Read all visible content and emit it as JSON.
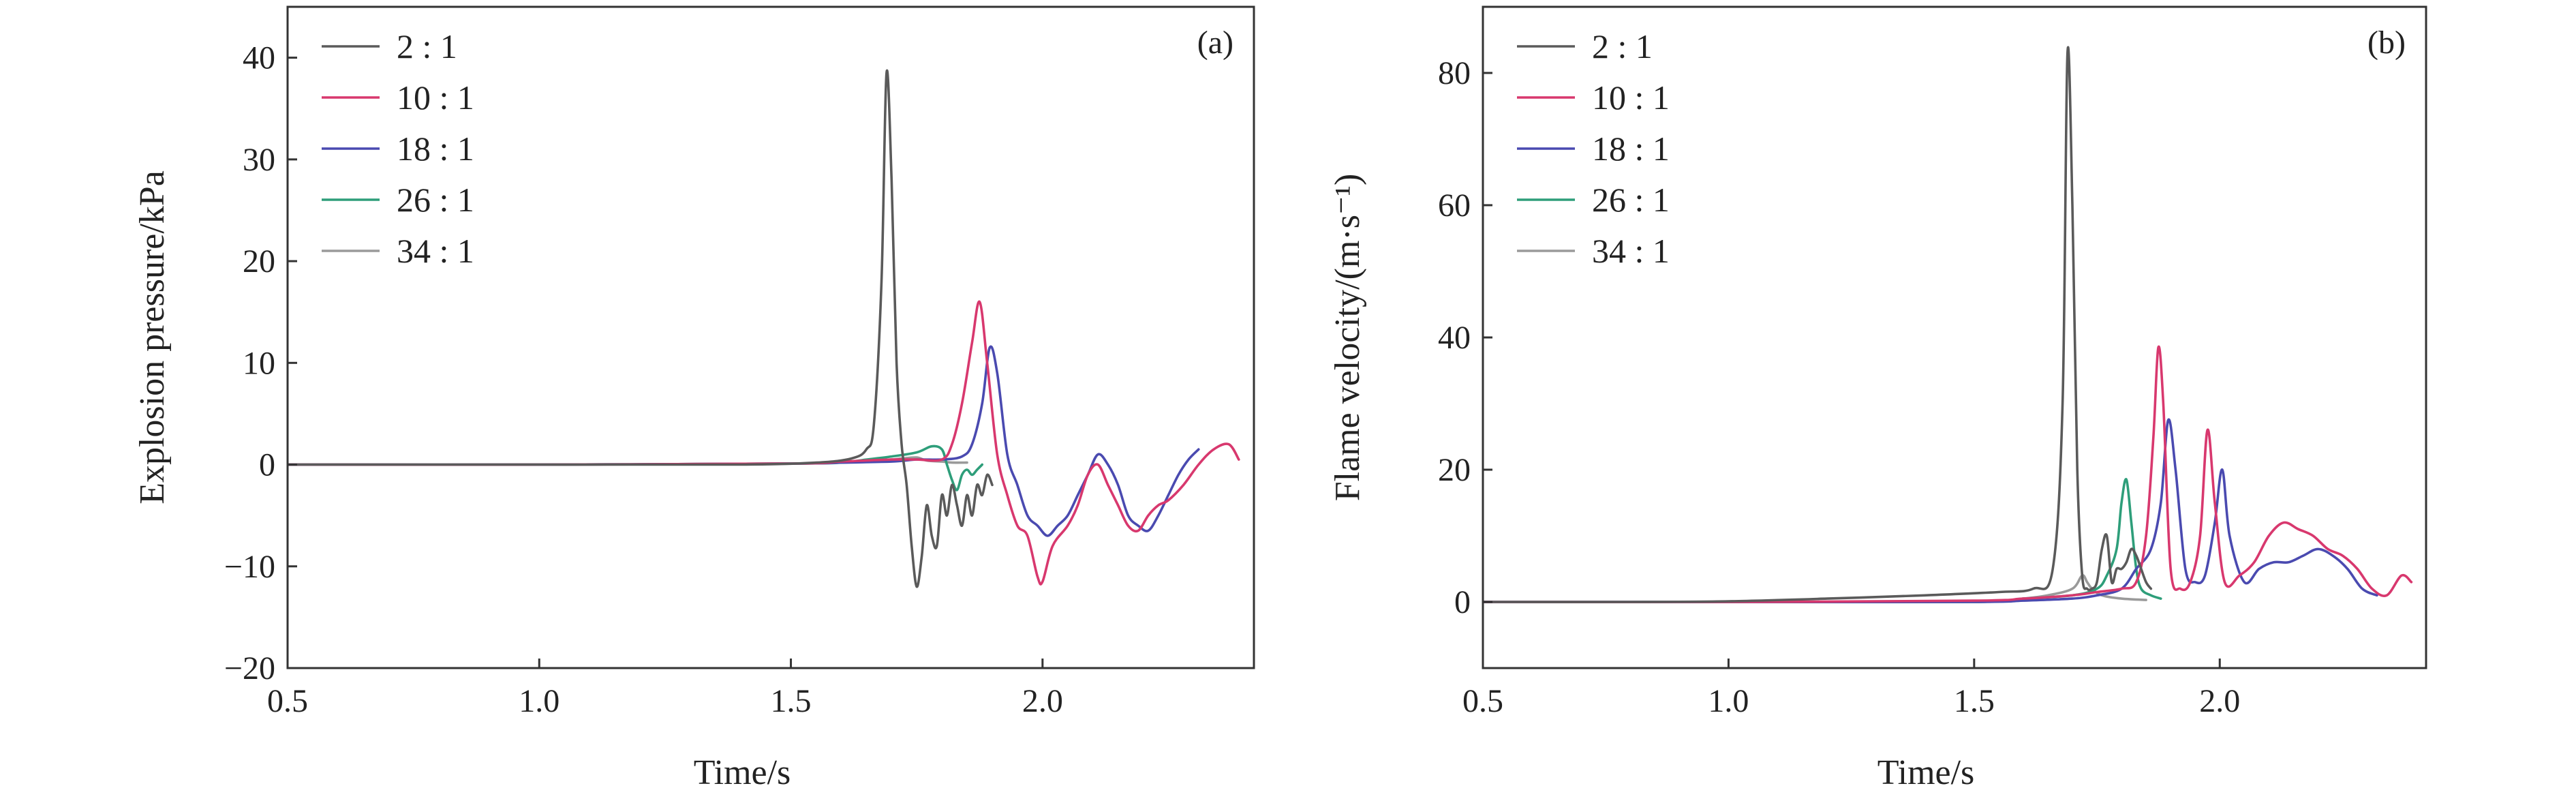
{
  "chart_data": [
    {
      "type": "line",
      "panel_label": "(a)",
      "xlabel": "Time/s",
      "ylabel": "Explosion pressure/kPa",
      "xlim": [
        0.5,
        2.42
      ],
      "ylim": [
        -20,
        45
      ],
      "xticks": [
        0.5,
        1.0,
        1.5,
        2.0
      ],
      "xtick_labels": [
        "0.5",
        "1.0",
        "1.5",
        "2.0"
      ],
      "yticks": [
        -20,
        -10,
        0,
        10,
        20,
        30,
        40
      ],
      "ytick_labels": [
        "−20",
        "−10",
        "0",
        "10",
        "20",
        "30",
        "40"
      ],
      "legend_position": "top-left",
      "grid": false,
      "series": [
        {
          "name": "2 : 1",
          "color": "#5a5a5a",
          "x": [
            0.5,
            1.0,
            1.4,
            1.55,
            1.62,
            1.65,
            1.665,
            1.68,
            1.69,
            1.7,
            1.71,
            1.72,
            1.73,
            1.74,
            1.75,
            1.76,
            1.77,
            1.78,
            1.79,
            1.8,
            1.81,
            1.82,
            1.83,
            1.84,
            1.85,
            1.86,
            1.87,
            1.88,
            1.89,
            1.9
          ],
          "y": [
            0,
            0,
            0,
            0.2,
            0.6,
            1.5,
            4,
            18,
            38.5,
            28,
            10,
            2,
            -2,
            -8,
            -12,
            -9,
            -4,
            -7,
            -8,
            -3,
            -5,
            -2,
            -4,
            -6,
            -3,
            -5,
            -2,
            -3,
            -1,
            -2
          ]
        },
        {
          "name": "10 : 1",
          "color": "#d8386e",
          "x": [
            0.5,
            1.0,
            1.5,
            1.6,
            1.7,
            1.75,
            1.8,
            1.82,
            1.84,
            1.86,
            1.875,
            1.89,
            1.91,
            1.93,
            1.95,
            1.97,
            1.99,
            2.0,
            2.02,
            2.05,
            2.07,
            2.09,
            2.11,
            2.13,
            2.15,
            2.17,
            2.19,
            2.21,
            2.23,
            2.25,
            2.28,
            2.31,
            2.34,
            2.37,
            2.39
          ],
          "y": [
            0,
            0,
            0.1,
            0.3,
            0.5,
            0.5,
            0.5,
            2,
            6,
            12,
            16,
            10,
            1,
            -3,
            -6,
            -7,
            -11,
            -11.5,
            -8,
            -6,
            -4,
            -1,
            0,
            -2,
            -4,
            -6,
            -6.5,
            -5,
            -4,
            -3.5,
            -2,
            0,
            1.5,
            2,
            0.5
          ]
        },
        {
          "name": "18 : 1",
          "color": "#4a4ab0",
          "x": [
            0.5,
            1.0,
            1.5,
            1.6,
            1.7,
            1.75,
            1.8,
            1.84,
            1.86,
            1.88,
            1.895,
            1.91,
            1.93,
            1.95,
            1.97,
            1.99,
            2.01,
            2.03,
            2.05,
            2.07,
            2.09,
            2.11,
            2.13,
            2.15,
            2.17,
            2.19,
            2.21,
            2.23,
            2.25,
            2.27,
            2.29,
            2.31
          ],
          "y": [
            0,
            0,
            0.1,
            0.2,
            0.3,
            0.5,
            0.5,
            0.8,
            2,
            6,
            11.5,
            9,
            1,
            -2,
            -5,
            -6,
            -7,
            -6,
            -5,
            -3,
            -1,
            1,
            0,
            -2,
            -5,
            -6,
            -6.5,
            -5,
            -3,
            -1,
            0.5,
            1.5
          ]
        },
        {
          "name": "26 : 1",
          "color": "#2e9e7a",
          "x": [
            0.5,
            1.0,
            1.5,
            1.6,
            1.65,
            1.7,
            1.75,
            1.78,
            1.8,
            1.81,
            1.82,
            1.83,
            1.84,
            1.85,
            1.86,
            1.87,
            1.88
          ],
          "y": [
            0,
            0,
            0.1,
            0.2,
            0.5,
            0.8,
            1.2,
            1.8,
            1.5,
            0,
            -1.5,
            -2.5,
            -1,
            -0.5,
            -1,
            -0.5,
            0
          ]
        },
        {
          "name": "34 : 1",
          "color": "#9a9a9a",
          "x": [
            0.5,
            1.0,
            1.5,
            1.6,
            1.65,
            1.7,
            1.72,
            1.75,
            1.77,
            1.8,
            1.82,
            1.85
          ],
          "y": [
            0,
            0,
            0.1,
            0.2,
            0.3,
            0.5,
            0.6,
            0.7,
            0.4,
            0.3,
            0.2,
            0.2
          ]
        }
      ]
    },
    {
      "type": "line",
      "panel_label": "(b)",
      "xlabel": "Time/s",
      "ylabel": "Flame velocity/(m·s⁻¹)",
      "xlim": [
        0.5,
        2.42
      ],
      "ylim": [
        -10,
        90
      ],
      "xticks": [
        0.5,
        1.0,
        1.5,
        2.0
      ],
      "xtick_labels": [
        "0.5",
        "1.0",
        "1.5",
        "2.0"
      ],
      "yticks": [
        0,
        20,
        40,
        60,
        80
      ],
      "ytick_labels": [
        "0",
        "20",
        "40",
        "60",
        "80"
      ],
      "legend_position": "top-left",
      "grid": false,
      "series": [
        {
          "name": "2 : 1",
          "color": "#5a5a5a",
          "x": [
            0.5,
            0.8,
            1.0,
            1.2,
            1.4,
            1.55,
            1.62,
            1.66,
            1.68,
            1.69,
            1.7,
            1.71,
            1.72,
            1.73,
            1.74,
            1.75,
            1.76,
            1.77,
            1.78,
            1.79,
            1.8,
            1.81,
            1.82,
            1.83,
            1.84,
            1.85,
            1.86
          ],
          "y": [
            0,
            0,
            0.1,
            0.5,
            1,
            1.5,
            2,
            5,
            30,
            83,
            60,
            20,
            4,
            2,
            2,
            3,
            8,
            10,
            3,
            5,
            5,
            6,
            8,
            7,
            5,
            3,
            2
          ]
        },
        {
          "name": "10 : 1",
          "color": "#d8386e",
          "x": [
            0.5,
            1.0,
            1.5,
            1.6,
            1.7,
            1.75,
            1.8,
            1.83,
            1.85,
            1.865,
            1.875,
            1.885,
            1.9,
            1.92,
            1.94,
            1.96,
            1.975,
            1.99,
            2.01,
            2.04,
            2.07,
            2.1,
            2.13,
            2.16,
            2.19,
            2.22,
            2.25,
            2.28,
            2.31,
            2.34,
            2.37,
            2.39
          ],
          "y": [
            0,
            0,
            0.2,
            0.5,
            1,
            1.5,
            2,
            3,
            10,
            25,
            38.5,
            30,
            5,
            2,
            3,
            10,
            26,
            15,
            3,
            4,
            6,
            10,
            12,
            11,
            10,
            8,
            7,
            5,
            2,
            1,
            4,
            3
          ]
        },
        {
          "name": "18 : 1",
          "color": "#4a4ab0",
          "x": [
            0.5,
            1.0,
            1.5,
            1.6,
            1.7,
            1.75,
            1.8,
            1.83,
            1.86,
            1.88,
            1.895,
            1.91,
            1.93,
            1.95,
            1.97,
            1.99,
            2.005,
            2.02,
            2.05,
            2.08,
            2.11,
            2.14,
            2.17,
            2.2,
            2.23,
            2.26,
            2.29,
            2.32
          ],
          "y": [
            0,
            0,
            0,
            0.2,
            0.5,
            1,
            2,
            5,
            8,
            15,
            27.5,
            20,
            5,
            3,
            4,
            12,
            20,
            10,
            3,
            5,
            6,
            6,
            7,
            8,
            7,
            5,
            2,
            1
          ]
        },
        {
          "name": "26 : 1",
          "color": "#2e9e7a",
          "x": [
            0.5,
            1.0,
            1.5,
            1.6,
            1.7,
            1.75,
            1.77,
            1.79,
            1.8,
            1.81,
            1.82,
            1.83,
            1.84,
            1.86,
            1.88
          ],
          "y": [
            0,
            0,
            0,
            0.5,
            1,
            2,
            4,
            8,
            15,
            18.5,
            12,
            5,
            2,
            1,
            0.5
          ]
        },
        {
          "name": "34 : 1",
          "color": "#9a9a9a",
          "x": [
            0.5,
            1.0,
            1.5,
            1.6,
            1.65,
            1.7,
            1.72,
            1.73,
            1.74,
            1.76,
            1.8,
            1.85
          ],
          "y": [
            0,
            0,
            0,
            0.5,
            1,
            2,
            4,
            3,
            2,
            1,
            0.5,
            0.3
          ]
        }
      ]
    }
  ]
}
